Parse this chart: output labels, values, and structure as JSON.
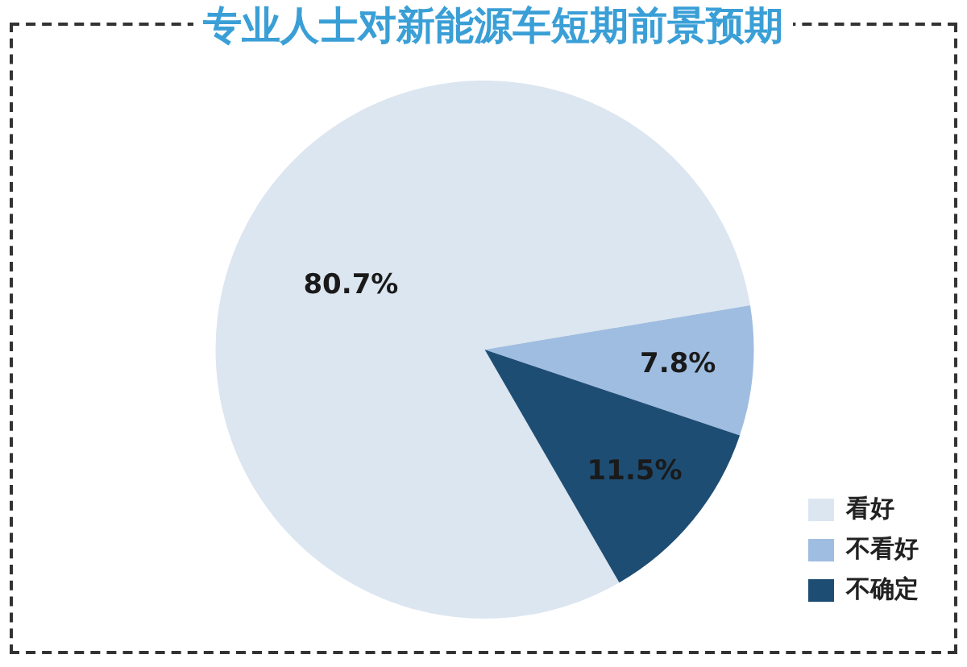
{
  "chart_data": {
    "type": "pie",
    "title": "专业人士对新能源车短期前景预期",
    "categories": [
      "看好",
      "不看好",
      "不确定"
    ],
    "values": [
      80.7,
      7.8,
      11.5
    ],
    "value_labels": [
      "80.7%",
      "7.8%",
      "11.5%"
    ],
    "colors": [
      "#dce6f0",
      "#9fbde0",
      "#1e4d74"
    ],
    "legend": "bottom right"
  }
}
